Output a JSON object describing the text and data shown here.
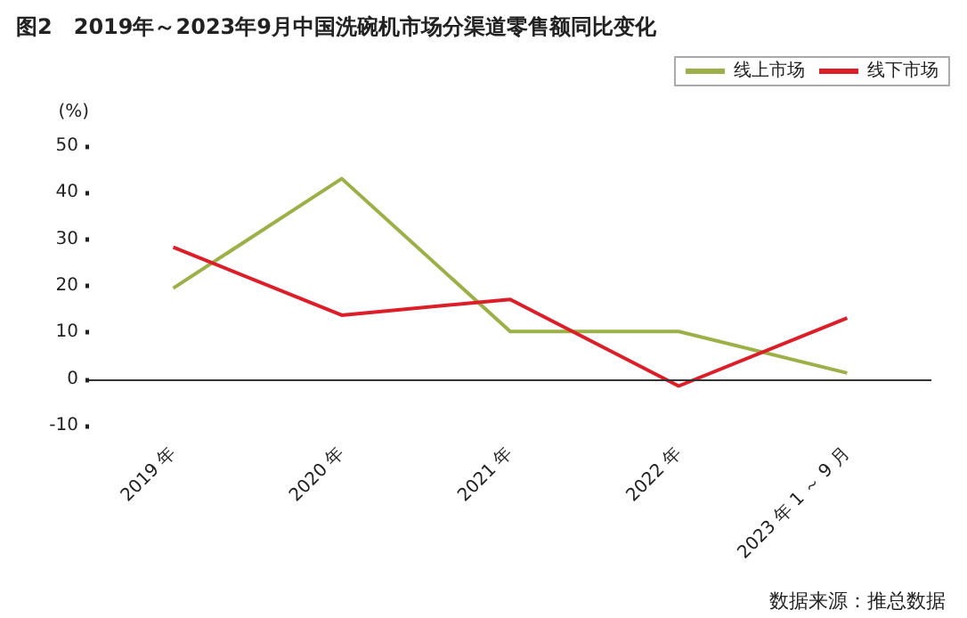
{
  "chart_data": {
    "type": "line",
    "title": "图2　2019年～2023年9月中国洗碗机市场分渠道零售额同比变化",
    "ylabel": "(%)",
    "categories": [
      "2019 年",
      "2020 年",
      "2021 年",
      "2022 年",
      "2023 年 1 ～ 9 月"
    ],
    "series": [
      {
        "name": "线上市场",
        "color": "#9bb047",
        "values": [
          19.5,
          43,
          10.2,
          10.2,
          1.3
        ]
      },
      {
        "name": "线下市场",
        "color": "#dc1e28",
        "values": [
          28.3,
          13.7,
          17.1,
          -1.5,
          13.1
        ]
      }
    ],
    "ref_lines": [
      {
        "axis": "y",
        "value": 0,
        "color": "#333333",
        "line_style": "solid"
      }
    ],
    "ylim": [
      -10,
      50
    ],
    "yticks": [
      -10,
      0,
      10,
      20,
      30,
      40,
      50
    ],
    "grid": false,
    "legend": "top right",
    "marker": "none",
    "line_style": "solid",
    "annotations": [
      "数据来源：推总数据"
    ]
  }
}
